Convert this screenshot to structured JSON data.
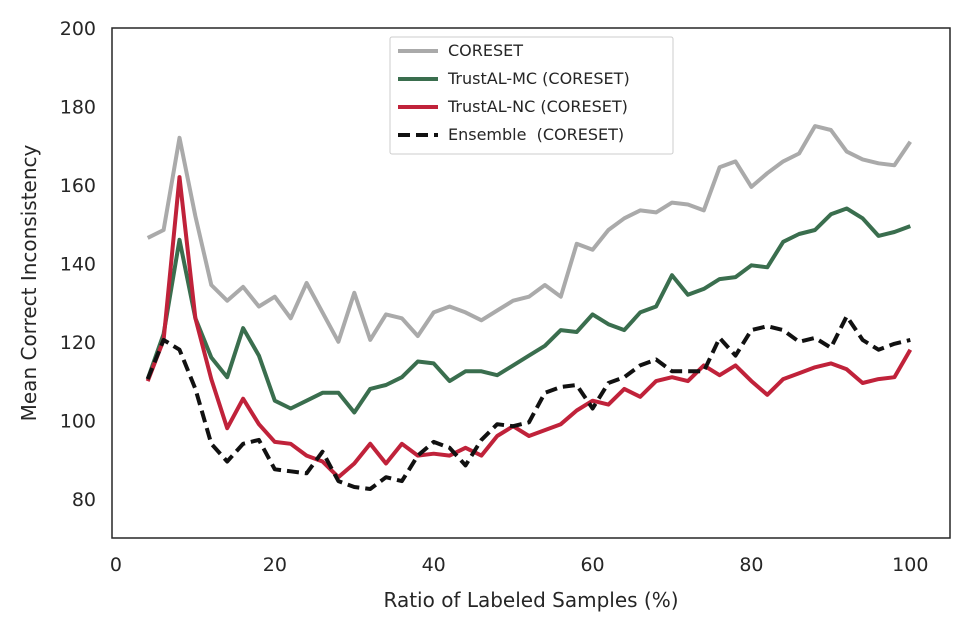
{
  "chart_data": {
    "type": "line",
    "title": "",
    "xlabel": "Ratio of Labeled Samples (%)",
    "ylabel": "Mean Correct Inconsistency",
    "xlim": [
      -0.5,
      105
    ],
    "ylim": [
      70,
      200
    ],
    "xticks": [
      0,
      20,
      40,
      60,
      80,
      100
    ],
    "yticks": [
      80,
      100,
      120,
      140,
      160,
      180,
      200
    ],
    "grid": false,
    "legend_position": "top-center",
    "x": [
      4,
      6,
      8,
      10,
      12,
      14,
      16,
      18,
      20,
      22,
      24,
      26,
      28,
      30,
      32,
      34,
      36,
      38,
      40,
      42,
      44,
      46,
      48,
      50,
      52,
      54,
      56,
      58,
      60,
      62,
      64,
      66,
      68,
      70,
      72,
      74,
      76,
      78,
      80,
      82,
      84,
      86,
      88,
      90,
      92,
      94,
      96,
      98,
      100
    ],
    "series": [
      {
        "name": "CORESET",
        "color": "#aaaaaa",
        "dash": "solid",
        "values": [
          146.5,
          148.5,
          172,
          152,
          134.5,
          130.5,
          134,
          129,
          131.5,
          126,
          135,
          127.5,
          120,
          132.5,
          120.5,
          127,
          126,
          121.5,
          127.5,
          129,
          127.5,
          125.5,
          128,
          130.5,
          131.5,
          134.5,
          131.5,
          145,
          143.5,
          148.5,
          151.5,
          153.5,
          153,
          155.5,
          155,
          153.5,
          164.5,
          166,
          159.5,
          163,
          166,
          168,
          175,
          174,
          168.5,
          166.5,
          165.5,
          165,
          171
        ]
      },
      {
        "name": "TrustAL-MC (CORESET)",
        "color": "#3a6e4e",
        "dash": "solid",
        "values": [
          110.5,
          122,
          146,
          126,
          116,
          111,
          123.5,
          116.5,
          105,
          103,
          105,
          107,
          107,
          102,
          108,
          109,
          111,
          115,
          114.5,
          110,
          112.5,
          112.5,
          111.5,
          114,
          116.5,
          119,
          123,
          122.5,
          127,
          124.5,
          123,
          127.5,
          129,
          137,
          132,
          133.5,
          136,
          136.5,
          139.5,
          139,
          145.5,
          147.5,
          148.5,
          152.5,
          154,
          151.5,
          147,
          148,
          149.5
        ]
      },
      {
        "name": "TrustAL-NC (CORESET)",
        "color": "#c0223a",
        "dash": "solid",
        "values": [
          110,
          120.5,
          162,
          126,
          110.5,
          98,
          105.5,
          99,
          94.5,
          94,
          91,
          89.5,
          85.5,
          89,
          94,
          89,
          94,
          91,
          91.5,
          91,
          93,
          91,
          96,
          98.5,
          96,
          97.5,
          99,
          102.5,
          105,
          104,
          108,
          106,
          110,
          111,
          110,
          114,
          111.5,
          114,
          110,
          106.5,
          110.5,
          112,
          113.5,
          114.5,
          113,
          109.5,
          110.5,
          111,
          118
        ]
      },
      {
        "name": "Ensemble  (CORESET)",
        "color": "#111111",
        "dash": "dashed",
        "values": [
          110.5,
          120.5,
          118,
          108,
          94,
          89.5,
          94,
          95,
          87.5,
          87,
          86.5,
          92,
          84.5,
          83,
          82.5,
          85.5,
          84.5,
          91,
          94.5,
          93,
          88.5,
          95,
          99,
          98.5,
          99.5,
          107,
          108.5,
          109,
          103,
          109.5,
          111,
          114,
          115.5,
          112.5,
          112.5,
          112.5,
          121,
          116.5,
          123,
          124,
          123,
          120,
          121,
          118.5,
          126.5,
          120.5,
          118,
          119.5,
          120.5
        ]
      }
    ]
  }
}
